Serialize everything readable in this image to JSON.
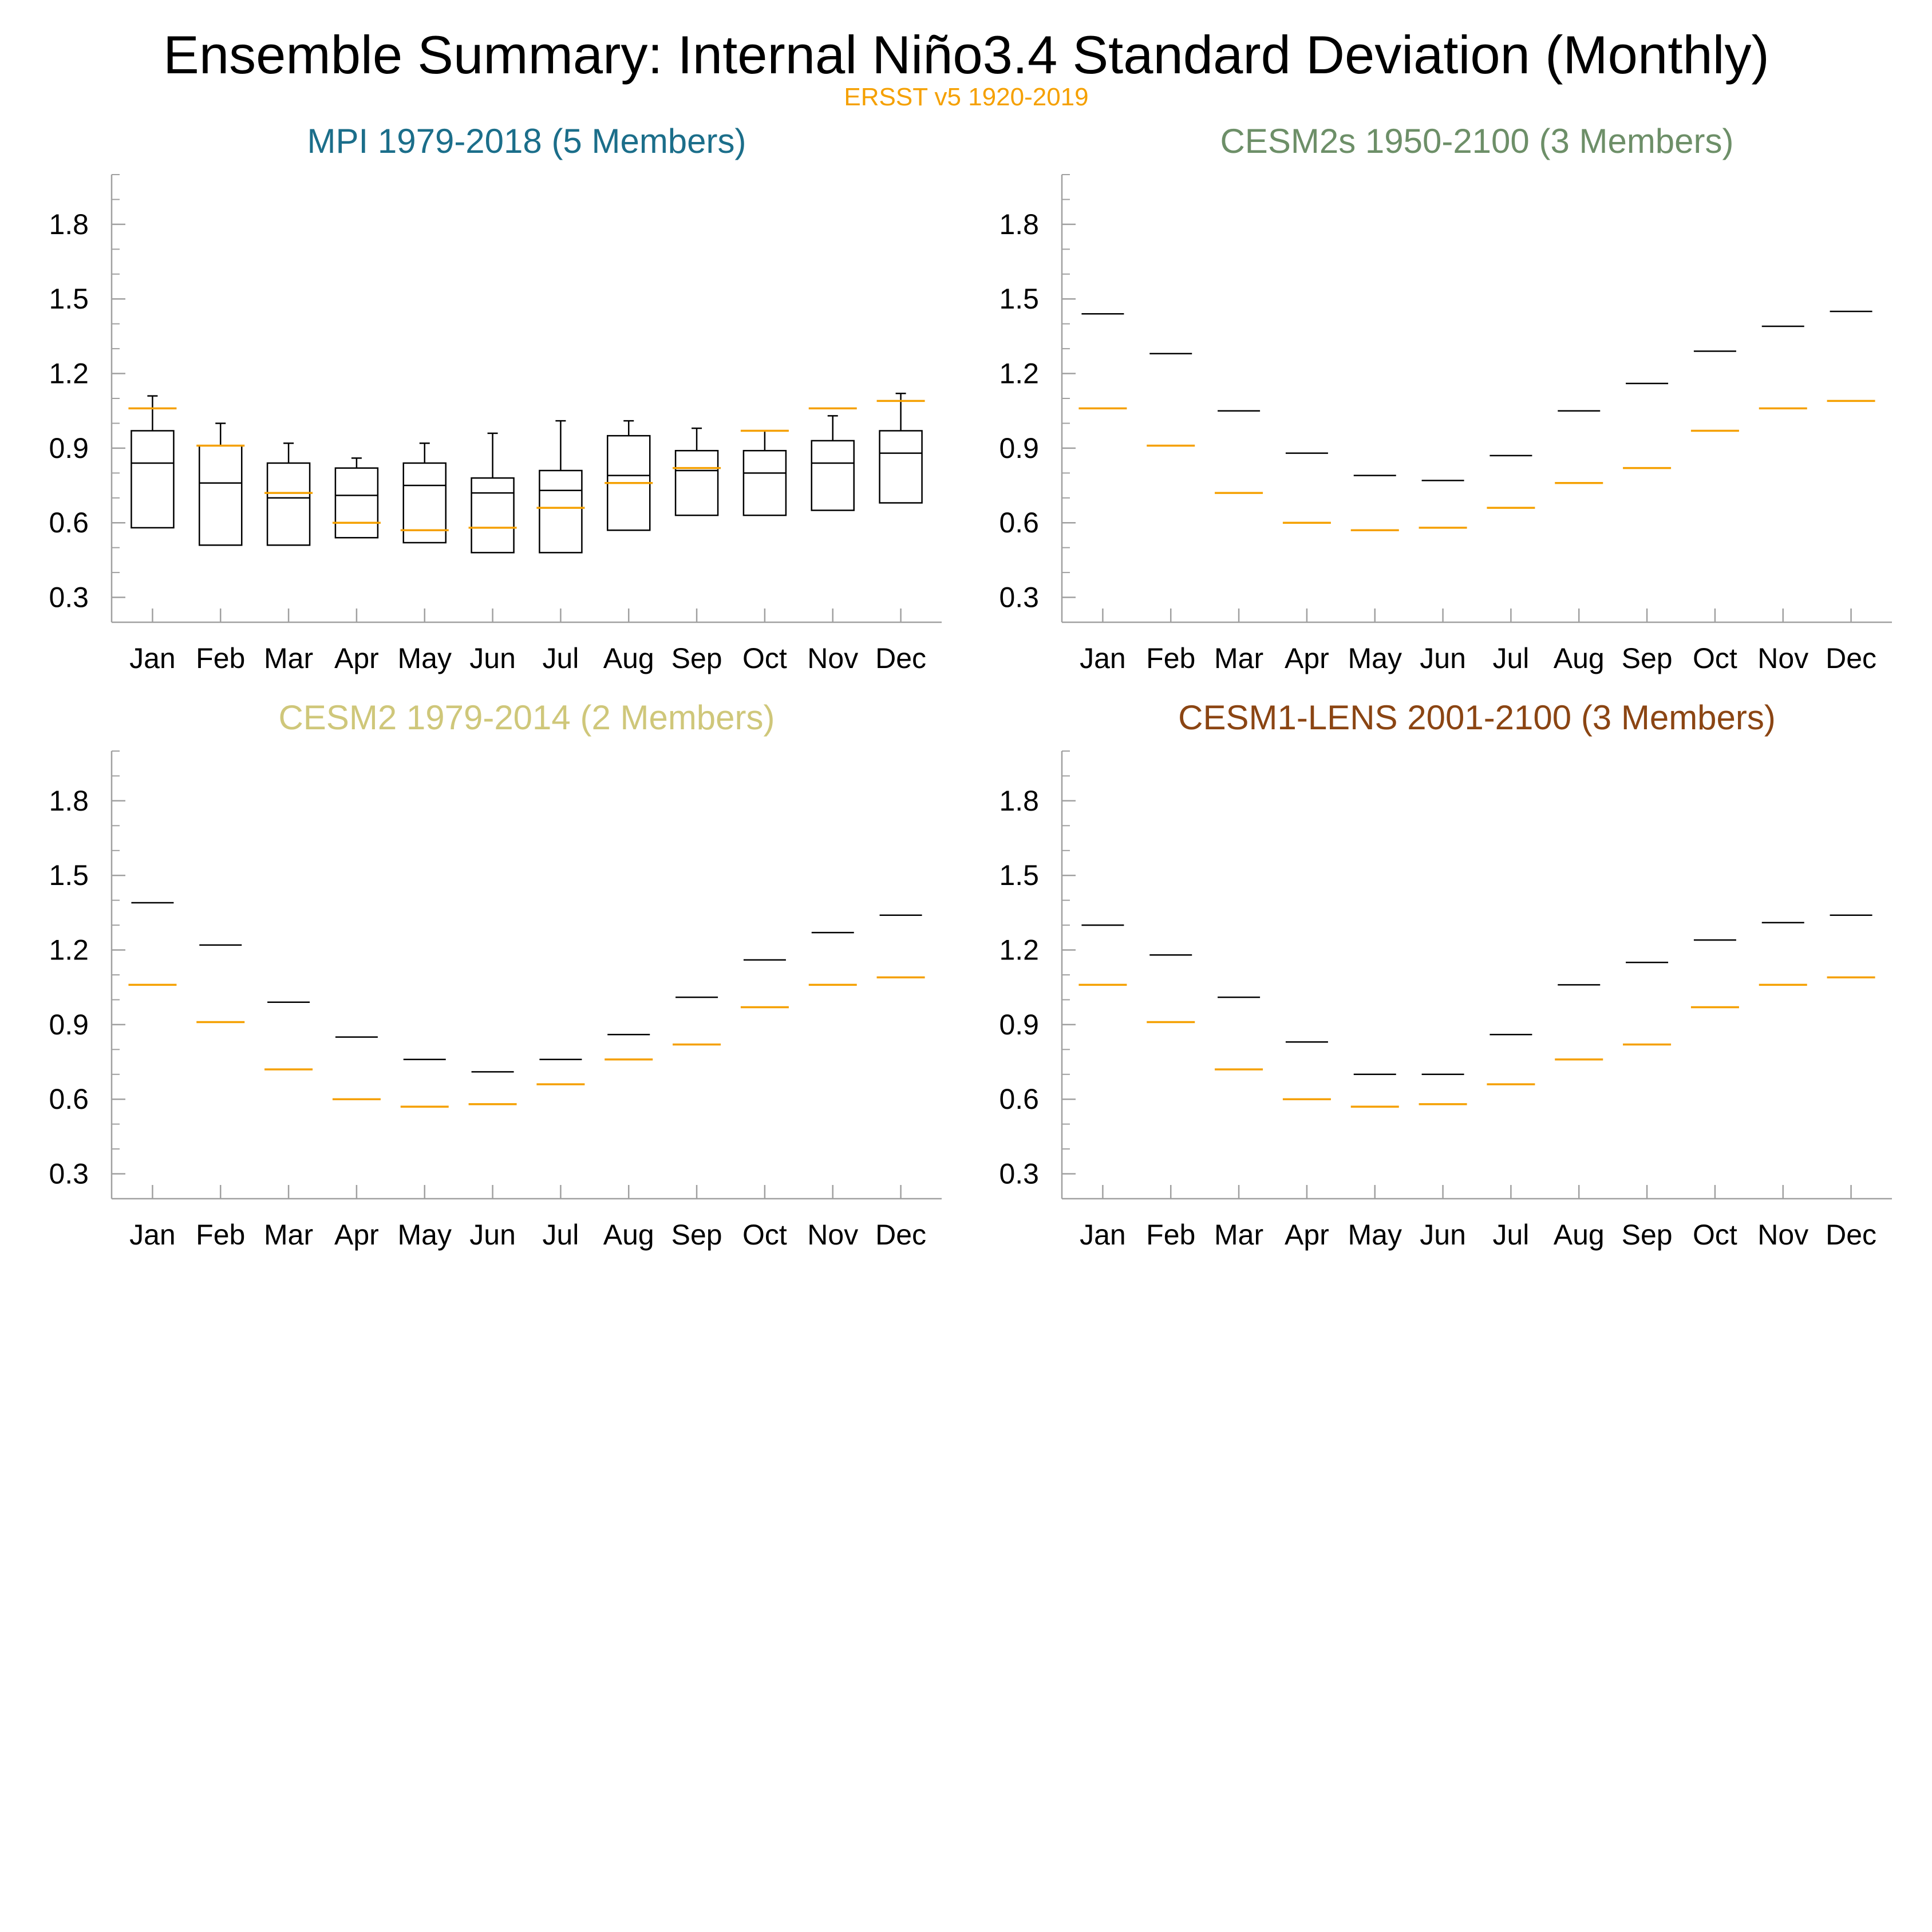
{
  "figure": {
    "title": "Ensemble Summary: Internal Niño3.4 Standard Deviation (Monthly)",
    "subtitle": "ERSST v5 1920-2019",
    "subtitle_color": "#f5a000",
    "obs_color": "#f5a000",
    "model_color": "#000000"
  },
  "chart_data": [
    {
      "type": "box",
      "title": "MPI 1979-2018 (5 Members)",
      "title_color": "#1b6e8a",
      "ylim": [
        0.2,
        2.0
      ],
      "yticks": [
        "0.3",
        "0.6",
        "0.9",
        "1.2",
        "1.5",
        "1.8"
      ],
      "categories": [
        "Jan",
        "Feb",
        "Mar",
        "Apr",
        "May",
        "Jun",
        "Jul",
        "Aug",
        "Sep",
        "Oct",
        "Nov",
        "Dec"
      ],
      "boxes": [
        {
          "min": 0.58,
          "q1": 0.58,
          "median": 0.84,
          "q3": 0.97,
          "max": 1.11
        },
        {
          "min": 0.51,
          "q1": 0.51,
          "median": 0.76,
          "q3": 0.91,
          "max": 1.0
        },
        {
          "min": 0.51,
          "q1": 0.51,
          "median": 0.7,
          "q3": 0.84,
          "max": 0.92
        },
        {
          "min": 0.54,
          "q1": 0.54,
          "median": 0.71,
          "q3": 0.82,
          "max": 0.86
        },
        {
          "min": 0.52,
          "q1": 0.52,
          "median": 0.75,
          "q3": 0.84,
          "max": 0.92
        },
        {
          "min": 0.48,
          "q1": 0.48,
          "median": 0.72,
          "q3": 0.78,
          "max": 0.96
        },
        {
          "min": 0.48,
          "q1": 0.48,
          "median": 0.73,
          "q3": 0.81,
          "max": 1.01
        },
        {
          "min": 0.57,
          "q1": 0.57,
          "median": 0.79,
          "q3": 0.95,
          "max": 1.01
        },
        {
          "min": 0.63,
          "q1": 0.63,
          "median": 0.81,
          "q3": 0.89,
          "max": 0.98
        },
        {
          "min": 0.63,
          "q1": 0.63,
          "median": 0.8,
          "q3": 0.89,
          "max": 0.97
        },
        {
          "min": 0.65,
          "q1": 0.65,
          "median": 0.84,
          "q3": 0.93,
          "max": 1.03
        },
        {
          "min": 0.68,
          "q1": 0.68,
          "median": 0.88,
          "q3": 0.97,
          "max": 1.12
        }
      ],
      "obs": [
        1.06,
        0.91,
        0.72,
        0.6,
        0.57,
        0.58,
        0.66,
        0.76,
        0.82,
        0.97,
        1.06,
        1.09
      ]
    },
    {
      "type": "box",
      "title": "CESM2s 1950-2100 (3 Members)",
      "title_color": "#6d8f68",
      "ylim": [
        0.2,
        2.0
      ],
      "yticks": [
        "0.3",
        "0.6",
        "0.9",
        "1.2",
        "1.5",
        "1.8"
      ],
      "categories": [
        "Jan",
        "Feb",
        "Mar",
        "Apr",
        "May",
        "Jun",
        "Jul",
        "Aug",
        "Sep",
        "Oct",
        "Nov",
        "Dec"
      ],
      "model": [
        1.44,
        1.28,
        1.05,
        0.88,
        0.79,
        0.77,
        0.87,
        1.05,
        1.16,
        1.29,
        1.39,
        1.45
      ],
      "obs": [
        1.06,
        0.91,
        0.72,
        0.6,
        0.57,
        0.58,
        0.66,
        0.76,
        0.82,
        0.97,
        1.06,
        1.09
      ]
    },
    {
      "type": "box",
      "title": "CESM2 1979-2014 (2 Members)",
      "title_color": "#cfc77a",
      "ylim": [
        0.2,
        2.0
      ],
      "yticks": [
        "0.3",
        "0.6",
        "0.9",
        "1.2",
        "1.5",
        "1.8"
      ],
      "categories": [
        "Jan",
        "Feb",
        "Mar",
        "Apr",
        "May",
        "Jun",
        "Jul",
        "Aug",
        "Sep",
        "Oct",
        "Nov",
        "Dec"
      ],
      "model": [
        1.39,
        1.22,
        0.99,
        0.85,
        0.76,
        0.71,
        0.76,
        0.86,
        1.01,
        1.16,
        1.27,
        1.34
      ],
      "obs": [
        1.06,
        0.91,
        0.72,
        0.6,
        0.57,
        0.58,
        0.66,
        0.76,
        0.82,
        0.97,
        1.06,
        1.09
      ]
    },
    {
      "type": "box",
      "title": "CESM1-LENS 2001-2100 (3 Members)",
      "title_color": "#8b4513",
      "ylim": [
        0.2,
        2.0
      ],
      "yticks": [
        "0.3",
        "0.6",
        "0.9",
        "1.2",
        "1.5",
        "1.8"
      ],
      "categories": [
        "Jan",
        "Feb",
        "Mar",
        "Apr",
        "May",
        "Jun",
        "Jul",
        "Aug",
        "Sep",
        "Oct",
        "Nov",
        "Dec"
      ],
      "model": [
        1.3,
        1.18,
        1.01,
        0.83,
        0.7,
        0.7,
        0.86,
        1.06,
        1.15,
        1.24,
        1.31,
        1.34
      ],
      "obs": [
        1.06,
        0.91,
        0.72,
        0.6,
        0.57,
        0.58,
        0.66,
        0.76,
        0.82,
        0.97,
        1.06,
        1.09
      ]
    }
  ]
}
